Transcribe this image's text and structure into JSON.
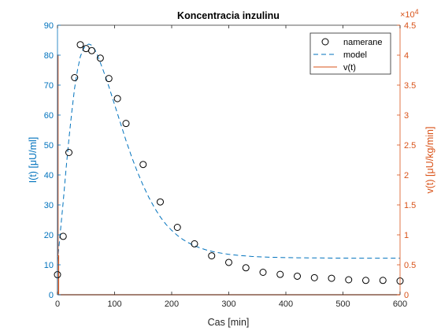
{
  "chart_data": {
    "type": "line",
    "title": "Koncentracia inzulinu",
    "xlabel": "Cas [min]",
    "ylabel_left": "I(t) [μU/ml]",
    "ylabel_right": "v(t) [μU/kg/min]",
    "xlim": [
      0,
      600
    ],
    "ylim_left": [
      0,
      90
    ],
    "ylim_right": [
      0,
      45000
    ],
    "x_ticks": [
      0,
      100,
      200,
      300,
      400,
      500,
      600
    ],
    "x_tick_labels": [
      "0",
      "100",
      "200",
      "300",
      "400",
      "500",
      "600"
    ],
    "y_left_ticks": [
      0,
      10,
      20,
      30,
      40,
      50,
      60,
      70,
      80,
      90
    ],
    "y_left_tick_labels": [
      "0",
      "10",
      "20",
      "30",
      "40",
      "50",
      "60",
      "70",
      "80",
      "90"
    ],
    "y_right_ticks": [
      0,
      0.5,
      1,
      1.5,
      2,
      2.5,
      3,
      3.5,
      4,
      4.5
    ],
    "y_right_tick_labels": [
      "0",
      "0.5",
      "1",
      "1.5",
      "2",
      "2.5",
      "3",
      "3.5",
      "4",
      "4.5"
    ],
    "y_right_exponent": "×10",
    "y_right_exponent_power": "4",
    "legend_position": "top-right",
    "colors": {
      "left_axis": "#0072BD",
      "right_axis": "#D95319",
      "model": "#0072BD",
      "input": "#D95319",
      "markers": "#000000"
    },
    "series": [
      {
        "name": "namerane",
        "style": "markers",
        "x": [
          0,
          10,
          20,
          30,
          40,
          50,
          60,
          75,
          90,
          105,
          120,
          150,
          180,
          210,
          240,
          270,
          300,
          330,
          360,
          390,
          420,
          450,
          480,
          510,
          540,
          570,
          600
        ],
        "y": [
          6.7,
          19.5,
          47.5,
          72.5,
          83.5,
          82.2,
          81.5,
          79,
          72.2,
          65.5,
          57.2,
          43.5,
          31,
          22.5,
          17,
          13,
          10.8,
          9,
          7.5,
          6.8,
          6.2,
          5.7,
          5.5,
          5,
          4.8,
          4.8,
          4.6
        ]
      },
      {
        "name": "model",
        "style": "dashed",
        "x": [
          0,
          5,
          10,
          15,
          20,
          25,
          30,
          35,
          40,
          45,
          50,
          55,
          60,
          65,
          70,
          80,
          90,
          100,
          110,
          120,
          130,
          140,
          150,
          160,
          170,
          180,
          190,
          200,
          210,
          220,
          230,
          240,
          250,
          260,
          270,
          280,
          290,
          300,
          320,
          340,
          360,
          380,
          400,
          420,
          440,
          460,
          480,
          500,
          520,
          540,
          560,
          580,
          600
        ],
        "y": [
          11,
          21,
          31,
          42,
          52,
          61,
          69,
          75,
          79.5,
          82,
          83.3,
          83.7,
          83.3,
          82,
          80,
          75,
          69.5,
          63.5,
          57.5,
          51.5,
          46,
          41,
          36.5,
          32.5,
          29,
          26,
          23.5,
          21.5,
          19.8,
          18.4,
          17.3,
          16.4,
          15.6,
          15,
          14.5,
          14.1,
          13.8,
          13.5,
          13.1,
          12.8,
          12.6,
          12.5,
          12.4,
          12.35,
          12.3,
          12.3,
          12.25,
          12.25,
          12.2,
          12.2,
          12.2,
          12.2,
          12.2
        ]
      },
      {
        "name": "v(t)",
        "style": "solid",
        "axis": "right",
        "x": [
          0,
          0,
          1,
          1,
          2,
          2,
          600
        ],
        "y": [
          0,
          40000,
          40000,
          6500,
          6500,
          0,
          0
        ]
      }
    ]
  }
}
